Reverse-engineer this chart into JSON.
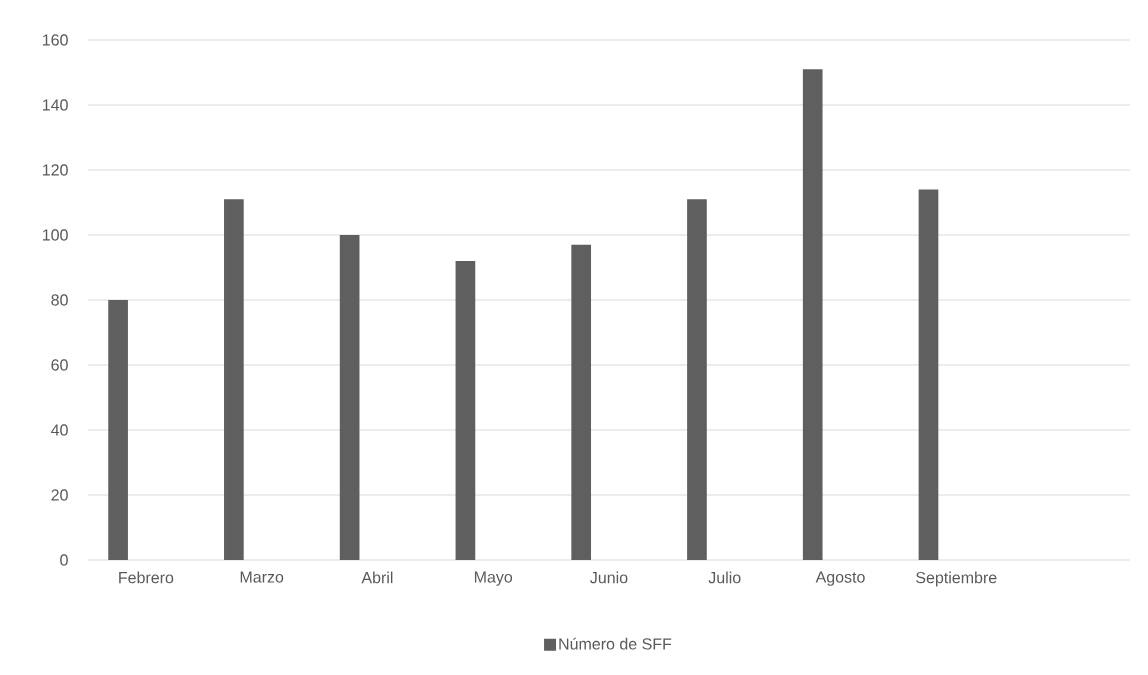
{
  "chart_data": {
    "type": "bar",
    "categories": [
      "Febrero",
      "Marzo",
      "Abril",
      "Mayo",
      "Junio",
      "Julio",
      "Agosto",
      "Septiembre",
      null
    ],
    "series": [
      {
        "name": "Número de SFF",
        "color": "#5f5f5f",
        "values": [
          80,
          111,
          100,
          92,
          97,
          111,
          151,
          114,
          null
        ]
      }
    ],
    "ylim": [
      0,
      160
    ],
    "yticks": [
      0,
      20,
      40,
      60,
      80,
      100,
      120,
      140,
      160
    ],
    "grid": "y",
    "legend": "bottom"
  }
}
